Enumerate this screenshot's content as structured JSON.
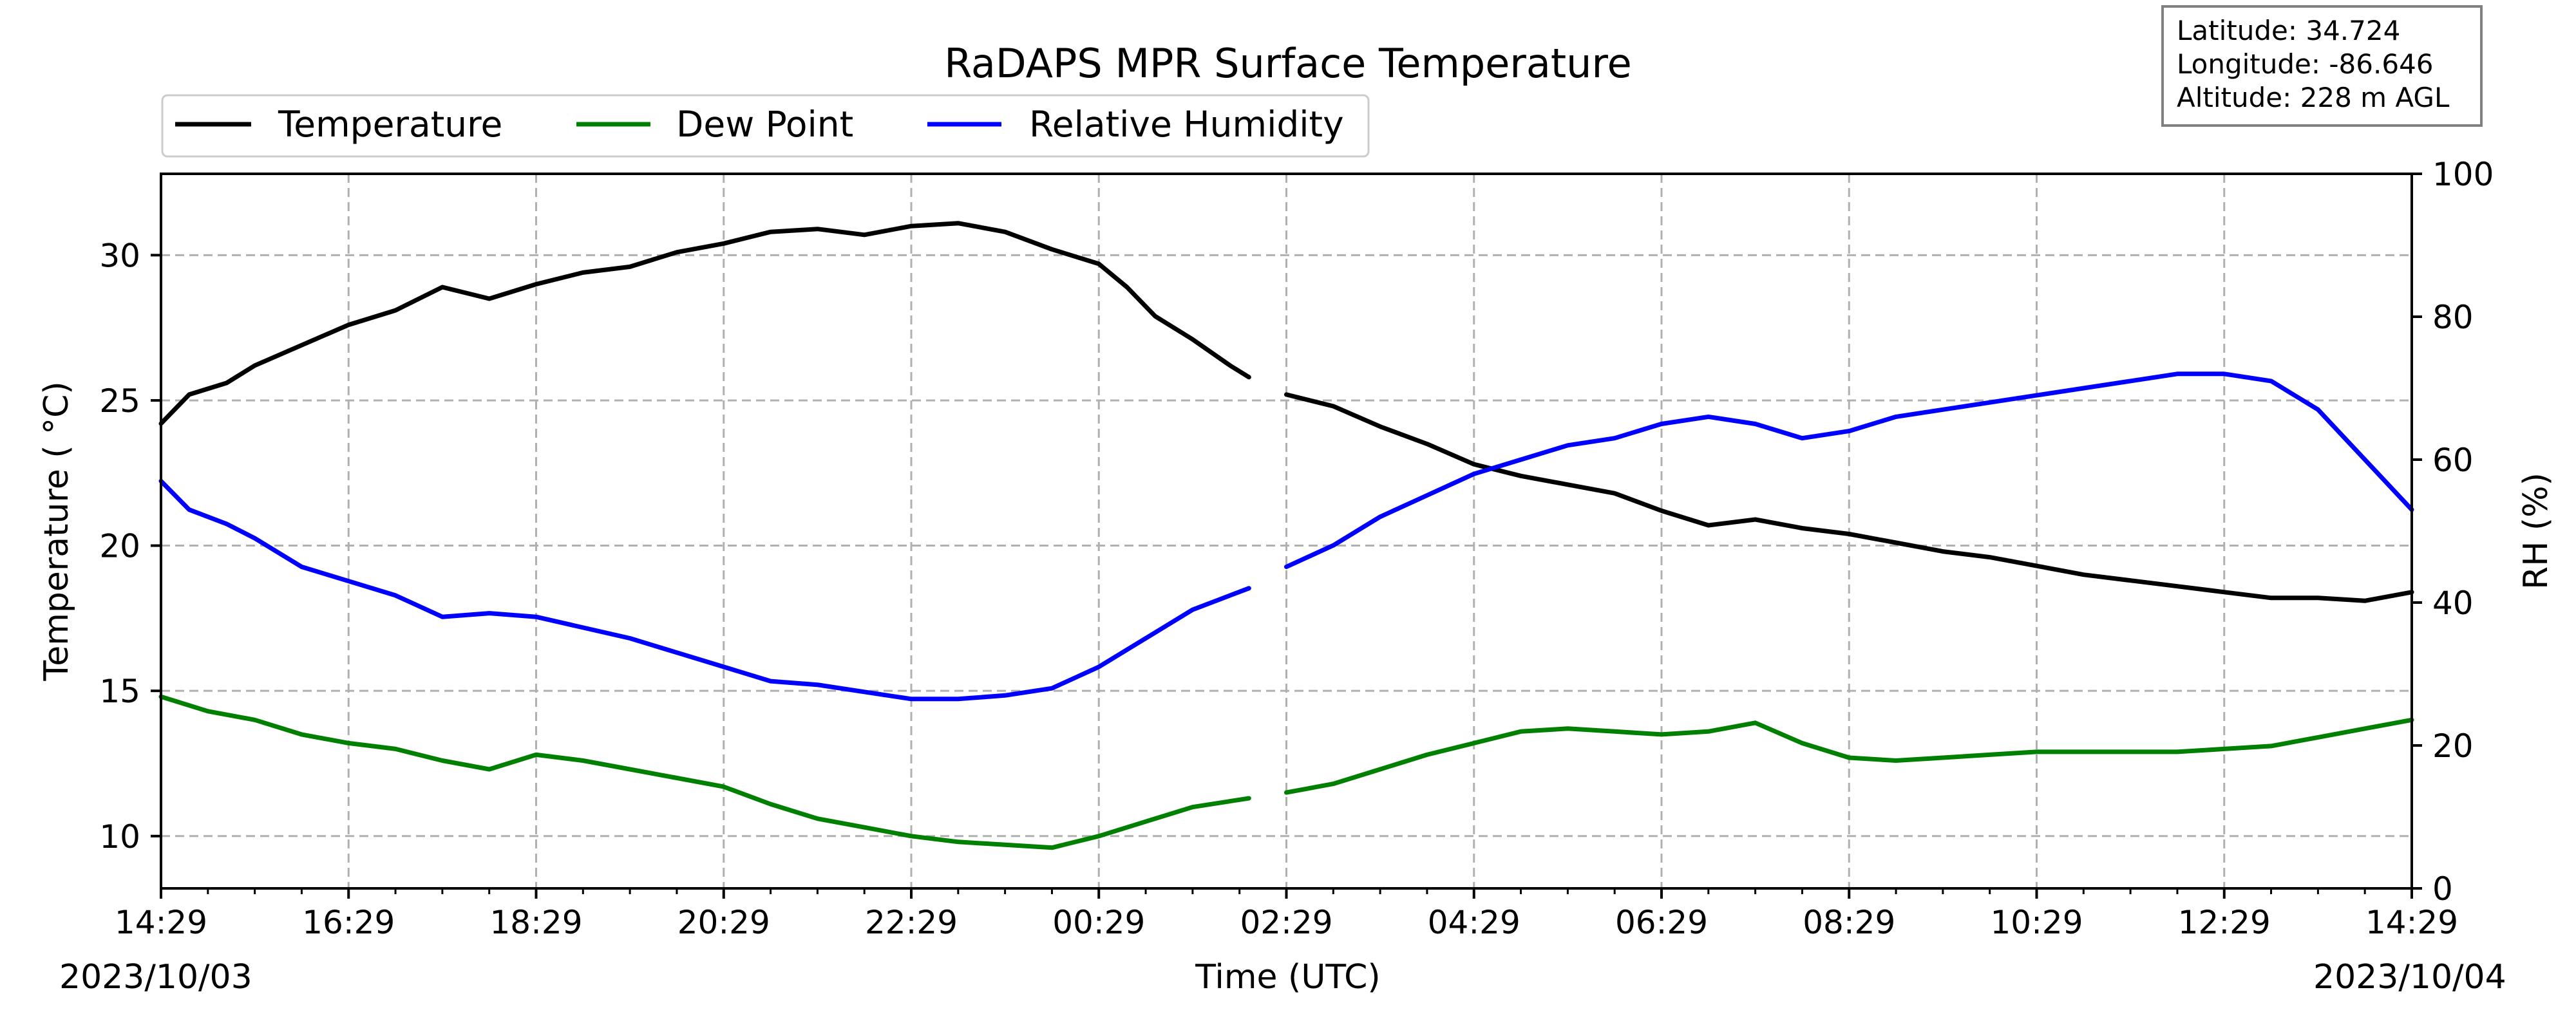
{
  "chart_data": {
    "type": "line",
    "title": "RaDAPS MPR Surface Temperature",
    "xlabel": "Time (UTC)",
    "ylabel_left": "Temperature ( °C)",
    "ylabel_right": "RH (%)",
    "x_tick_labels": [
      "14:29",
      "16:29",
      "18:29",
      "20:29",
      "22:29",
      "00:29",
      "02:29",
      "04:29",
      "06:29",
      "08:29",
      "10:29",
      "12:29",
      "14:29"
    ],
    "x_range_hours": [
      0,
      24
    ],
    "start_date": "2023/10/03",
    "end_date": "2023/10/04",
    "ylim_left": [
      8.2,
      32.8
    ],
    "yticks_left": [
      10,
      15,
      20,
      25,
      30
    ],
    "ylim_right": [
      0,
      100
    ],
    "yticks_right": [
      0,
      20,
      40,
      60,
      80,
      100
    ],
    "grid": true,
    "legend_position": "top-left",
    "info_box": {
      "latitude": "Latitude: 34.724",
      "longitude": "Longitude: -86.646",
      "altitude": "Altitude: 228 m AGL"
    },
    "series": [
      {
        "name": "Temperature",
        "axis": "left",
        "color": "#000000",
        "segments": [
          [
            [
              0,
              24.2
            ],
            [
              0.3,
              25.2
            ],
            [
              0.7,
              25.6
            ],
            [
              1.0,
              26.2
            ],
            [
              1.5,
              26.9
            ],
            [
              2.0,
              27.6
            ],
            [
              2.5,
              28.1
            ],
            [
              3.0,
              28.9
            ],
            [
              3.5,
              28.5
            ],
            [
              4.0,
              29.0
            ],
            [
              4.5,
              29.4
            ],
            [
              5.0,
              29.6
            ],
            [
              5.5,
              30.1
            ],
            [
              6.0,
              30.4
            ],
            [
              6.5,
              30.8
            ],
            [
              7.0,
              30.9
            ],
            [
              7.5,
              30.7
            ],
            [
              8.0,
              31.0
            ],
            [
              8.5,
              31.1
            ],
            [
              9.0,
              30.8
            ],
            [
              9.5,
              30.2
            ],
            [
              10.0,
              29.7
            ],
            [
              10.3,
              28.9
            ],
            [
              10.6,
              27.9
            ],
            [
              11.0,
              27.1
            ],
            [
              11.4,
              26.2
            ],
            [
              11.6,
              25.8
            ]
          ],
          [
            [
              12.0,
              25.2
            ],
            [
              12.5,
              24.8
            ],
            [
              13.0,
              24.1
            ],
            [
              13.5,
              23.5
            ],
            [
              14.0,
              22.8
            ],
            [
              14.5,
              22.4
            ],
            [
              15.0,
              22.1
            ],
            [
              15.5,
              21.8
            ],
            [
              16.0,
              21.2
            ],
            [
              16.5,
              20.7
            ],
            [
              17.0,
              20.9
            ],
            [
              17.5,
              20.6
            ],
            [
              18.0,
              20.4
            ],
            [
              18.5,
              20.1
            ],
            [
              19.0,
              19.8
            ],
            [
              19.5,
              19.6
            ],
            [
              20.0,
              19.3
            ],
            [
              20.5,
              19.0
            ],
            [
              21.0,
              18.8
            ],
            [
              21.5,
              18.6
            ],
            [
              22.0,
              18.4
            ],
            [
              22.5,
              18.2
            ],
            [
              23.0,
              18.2
            ],
            [
              23.5,
              18.1
            ],
            [
              24.0,
              18.4
            ]
          ]
        ]
      },
      {
        "name": "Dew Point",
        "axis": "left",
        "color": "#008000",
        "segments": [
          [
            [
              0,
              14.8
            ],
            [
              0.5,
              14.3
            ],
            [
              1.0,
              14.0
            ],
            [
              1.5,
              13.5
            ],
            [
              2.0,
              13.2
            ],
            [
              2.5,
              13.0
            ],
            [
              3.0,
              12.6
            ],
            [
              3.5,
              12.3
            ],
            [
              4.0,
              12.8
            ],
            [
              4.5,
              12.6
            ],
            [
              5.0,
              12.3
            ],
            [
              5.5,
              12.0
            ],
            [
              6.0,
              11.7
            ],
            [
              6.5,
              11.1
            ],
            [
              7.0,
              10.6
            ],
            [
              7.5,
              10.3
            ],
            [
              8.0,
              10.0
            ],
            [
              8.5,
              9.8
            ],
            [
              9.0,
              9.7
            ],
            [
              9.5,
              9.6
            ],
            [
              10.0,
              10.0
            ],
            [
              10.5,
              10.5
            ],
            [
              11.0,
              11.0
            ],
            [
              11.4,
              11.2
            ],
            [
              11.6,
              11.3
            ]
          ],
          [
            [
              12.0,
              11.5
            ],
            [
              12.5,
              11.8
            ],
            [
              13.0,
              12.3
            ],
            [
              13.5,
              12.8
            ],
            [
              14.0,
              13.2
            ],
            [
              14.5,
              13.6
            ],
            [
              15.0,
              13.7
            ],
            [
              15.5,
              13.6
            ],
            [
              16.0,
              13.5
            ],
            [
              16.5,
              13.6
            ],
            [
              17.0,
              13.9
            ],
            [
              17.5,
              13.2
            ],
            [
              18.0,
              12.7
            ],
            [
              18.5,
              12.6
            ],
            [
              19.0,
              12.7
            ],
            [
              19.5,
              12.8
            ],
            [
              20.0,
              12.9
            ],
            [
              20.5,
              12.9
            ],
            [
              21.0,
              12.9
            ],
            [
              21.5,
              12.9
            ],
            [
              22.0,
              13.0
            ],
            [
              22.5,
              13.1
            ],
            [
              23.0,
              13.4
            ],
            [
              23.5,
              13.7
            ],
            [
              24.0,
              14.0
            ]
          ]
        ]
      },
      {
        "name": "Relative Humidity",
        "axis": "right",
        "color": "#0000ff",
        "segments": [
          [
            [
              0,
              57
            ],
            [
              0.3,
              53
            ],
            [
              0.7,
              51
            ],
            [
              1.0,
              49
            ],
            [
              1.5,
              45
            ],
            [
              2.0,
              43
            ],
            [
              2.5,
              41
            ],
            [
              3.0,
              38
            ],
            [
              3.5,
              38.5
            ],
            [
              4.0,
              38
            ],
            [
              4.5,
              36.5
            ],
            [
              5.0,
              35
            ],
            [
              5.5,
              33
            ],
            [
              6.0,
              31
            ],
            [
              6.5,
              29
            ],
            [
              7.0,
              28.5
            ],
            [
              7.5,
              27.5
            ],
            [
              8.0,
              26.5
            ],
            [
              8.5,
              26.5
            ],
            [
              9.0,
              27
            ],
            [
              9.5,
              28
            ],
            [
              10.0,
              31
            ],
            [
              10.5,
              35
            ],
            [
              11.0,
              39
            ],
            [
              11.4,
              41
            ],
            [
              11.6,
              42
            ]
          ],
          [
            [
              12.0,
              45
            ],
            [
              12.5,
              48
            ],
            [
              13.0,
              52
            ],
            [
              13.5,
              55
            ],
            [
              14.0,
              58
            ],
            [
              14.5,
              60
            ],
            [
              15.0,
              62
            ],
            [
              15.5,
              63
            ],
            [
              16.0,
              65
            ],
            [
              16.5,
              66
            ],
            [
              17.0,
              65
            ],
            [
              17.5,
              63
            ],
            [
              18.0,
              64
            ],
            [
              18.5,
              66
            ],
            [
              19.0,
              67
            ],
            [
              19.5,
              68
            ],
            [
              20.0,
              69
            ],
            [
              20.5,
              70
            ],
            [
              21.0,
              71
            ],
            [
              21.5,
              72
            ],
            [
              22.0,
              72
            ],
            [
              22.5,
              71
            ],
            [
              23.0,
              67
            ],
            [
              23.5,
              60
            ],
            [
              24.0,
              53
            ]
          ]
        ]
      }
    ]
  }
}
